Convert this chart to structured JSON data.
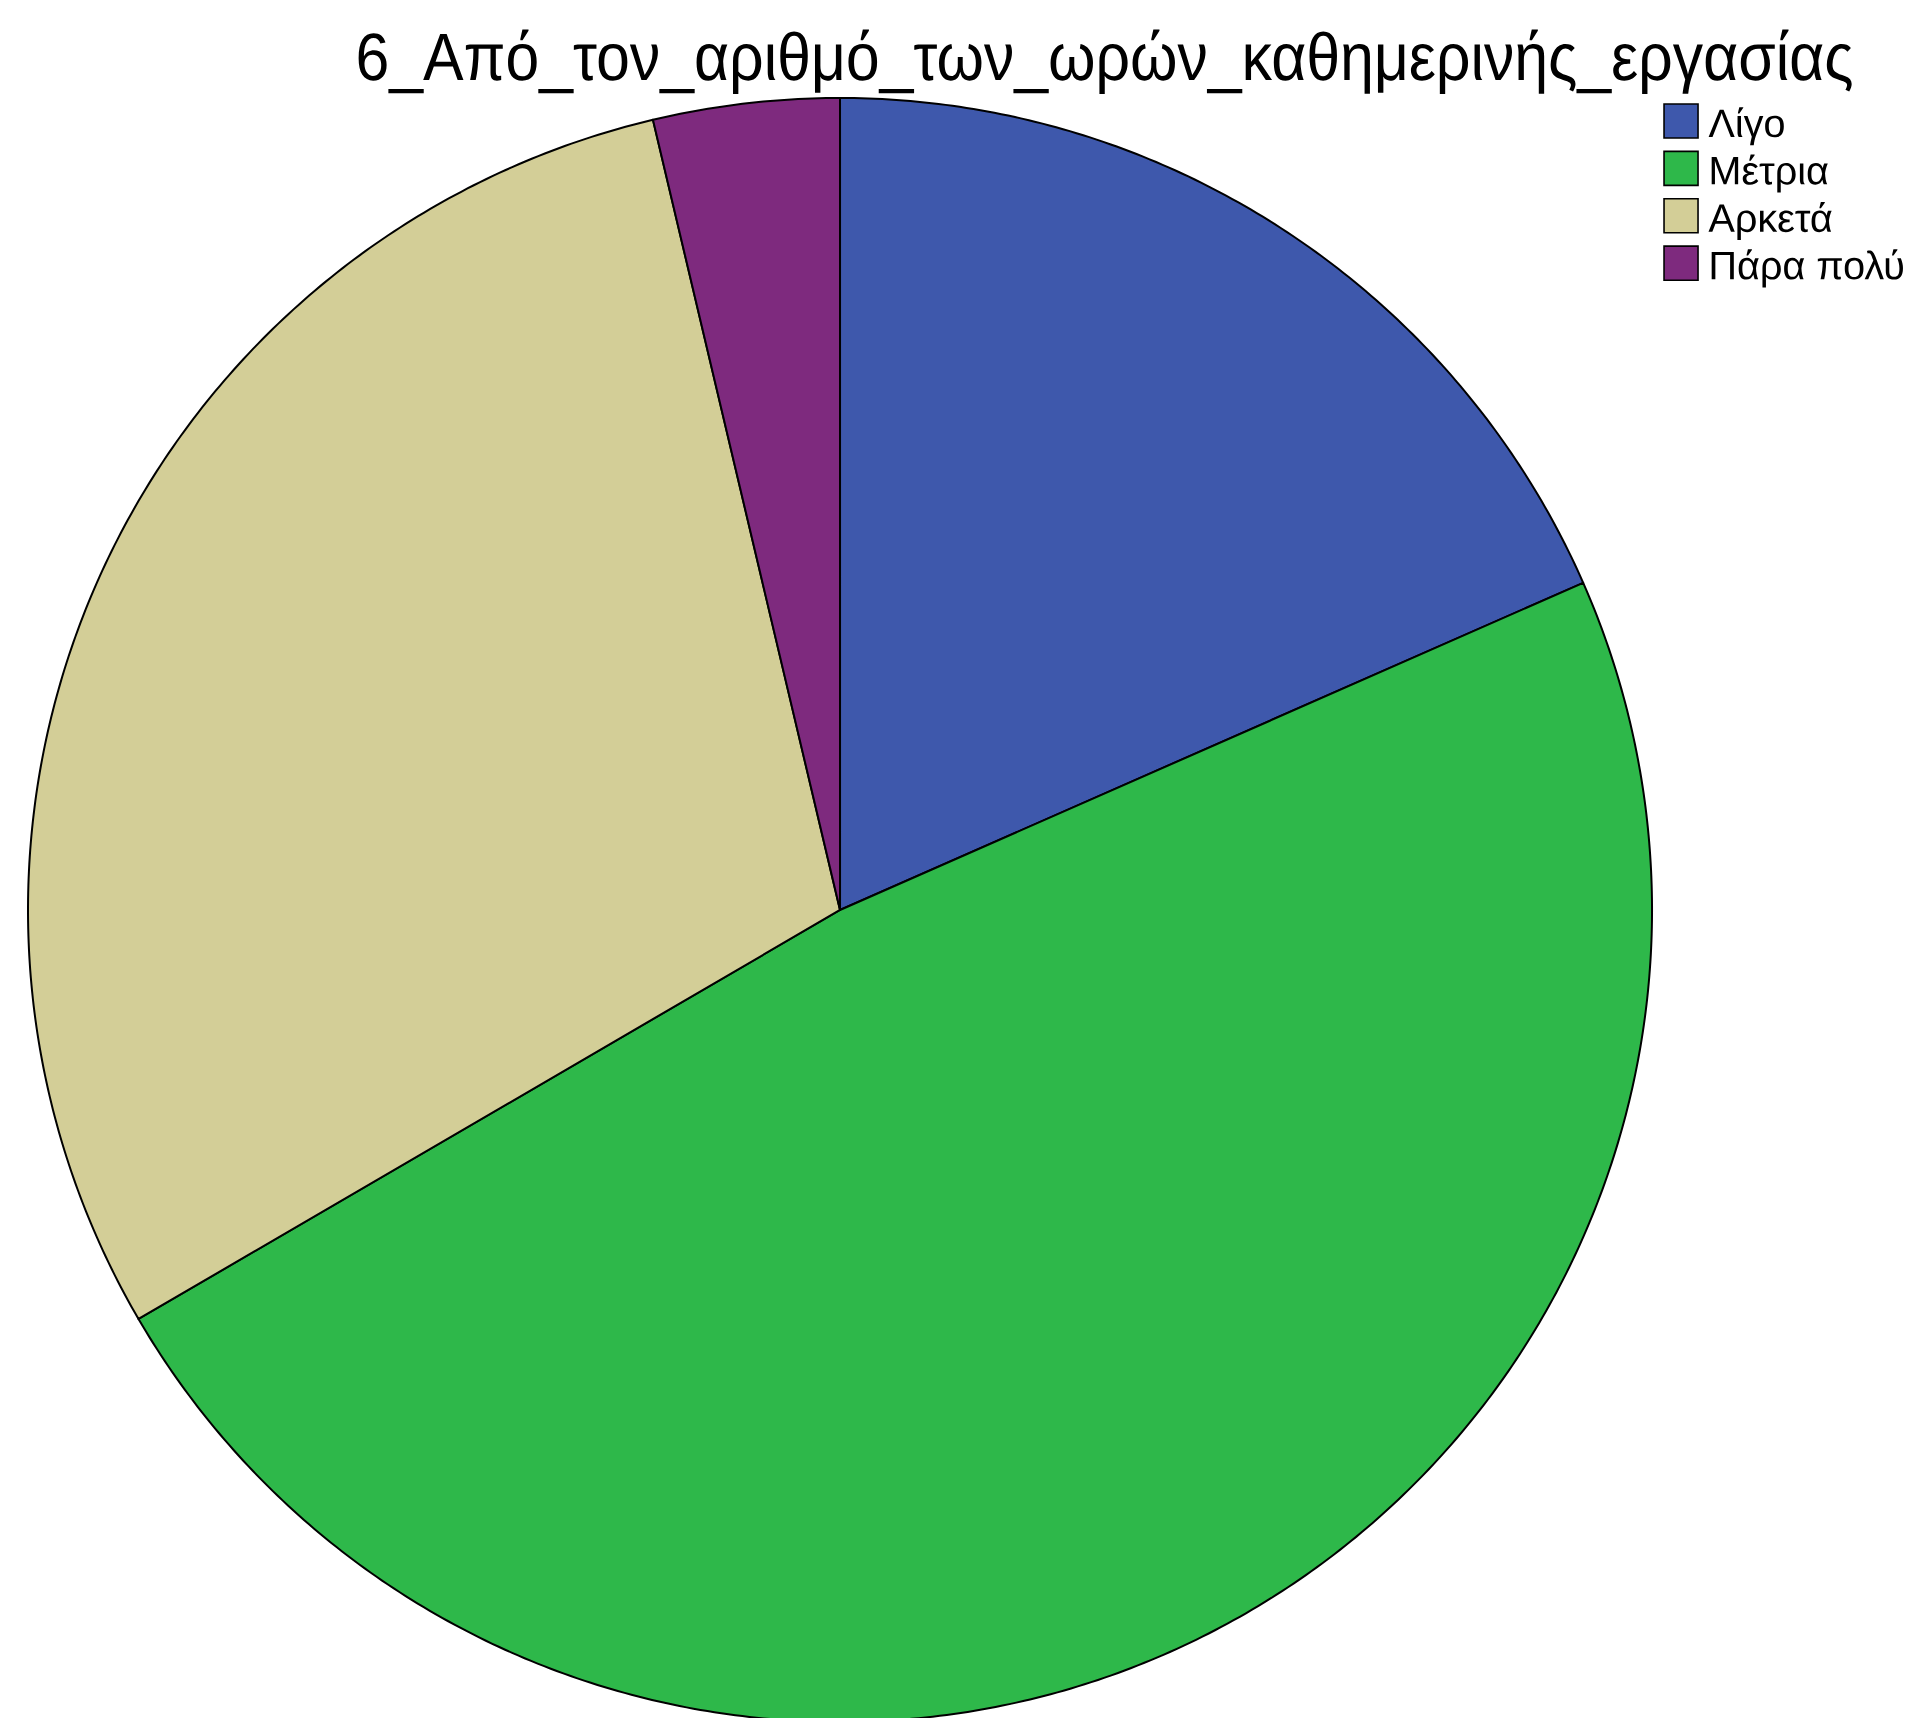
{
  "chart_data": {
    "type": "pie",
    "title": "6_Από_τον_αριθμό_των_ωρών_καθημερινής_εργασίας",
    "categories": [
      "Λίγο",
      "Μέτρια",
      "Αρκετά",
      "Πάρα πολύ"
    ],
    "values": [
      18.4,
      48.2,
      29.7,
      3.7
    ],
    "colors": [
      "#3e58ac",
      "#2eb84a",
      "#d3ce97",
      "#7e2a7e"
    ],
    "legend": "top right"
  }
}
